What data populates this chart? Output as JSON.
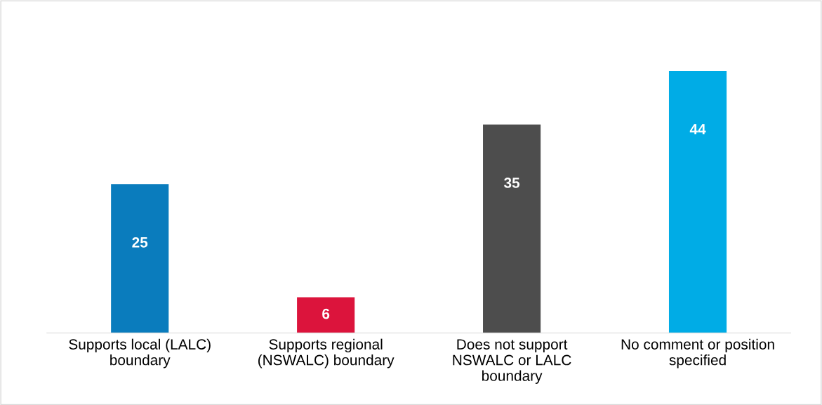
{
  "chart_data": {
    "type": "bar",
    "relative": false,
    "data_labels": true,
    "grid": false,
    "legend": false,
    "tick_labels": "x",
    "categories": [
      "Supports local (LALC)\nboundary",
      "Supports regional\n(NSWALC) boundary",
      "Does not support\nNSWALC or LALC\nboundary",
      "No comment or position\nspecified"
    ],
    "values": [
      25,
      6,
      35,
      44
    ],
    "colors": [
      "#0a7cbd",
      "#dc143c",
      "#4d4d4d",
      "#00ace6"
    ]
  }
}
